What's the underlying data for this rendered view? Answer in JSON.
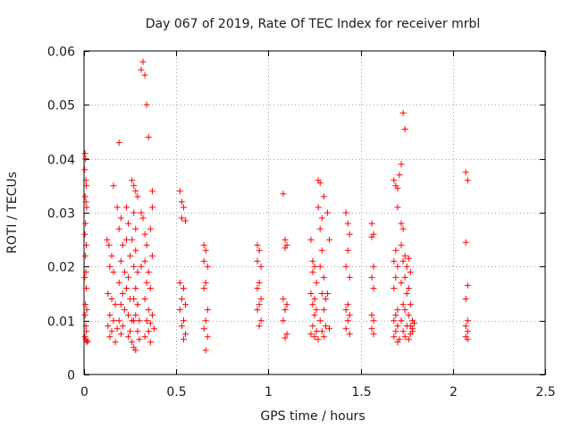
{
  "chart_data": {
    "type": "scatter",
    "title": "Day 067 of 2019, Rate Of TEC Index for receiver mrbl",
    "xlabel": "GPS time / hours",
    "ylabel": "ROTI / TECUs",
    "xlim": [
      0,
      2.5
    ],
    "ylim": [
      0,
      0.06
    ],
    "xticks": [
      0,
      0.5,
      1,
      1.5,
      2,
      2.5
    ],
    "xtick_labels": [
      "0",
      "0.5",
      "1",
      "1.5",
      "2",
      "2.5"
    ],
    "yticks": [
      0,
      0.01,
      0.02,
      0.03,
      0.04,
      0.05,
      0.06
    ],
    "ytick_labels": [
      "0",
      "0.01",
      "0.02",
      "0.03",
      "0.04",
      "0.05",
      "0.06"
    ],
    "grid": true,
    "marker": "+",
    "color": "#ff0000",
    "series": [
      {
        "name": "ROTI",
        "points": [
          [
            0.005,
            0.041
          ],
          [
            0.008,
            0.04
          ],
          [
            0.004,
            0.038
          ],
          [
            0.01,
            0.036
          ],
          [
            0.012,
            0.035
          ],
          [
            0.006,
            0.033
          ],
          [
            0.01,
            0.032
          ],
          [
            0.014,
            0.031
          ],
          [
            0.008,
            0.028
          ],
          [
            0.005,
            0.026
          ],
          [
            0.012,
            0.024
          ],
          [
            0.007,
            0.022
          ],
          [
            0.01,
            0.019
          ],
          [
            0.004,
            0.018
          ],
          [
            0.012,
            0.016
          ],
          [
            0.008,
            0.013
          ],
          [
            0.015,
            0.012
          ],
          [
            0.006,
            0.011
          ],
          [
            0.01,
            0.009
          ],
          [
            0.013,
            0.008
          ],
          [
            0.005,
            0.007
          ],
          [
            0.009,
            0.0065
          ],
          [
            0.014,
            0.006
          ],
          [
            0.02,
            0.0062
          ],
          [
            0.125,
            0.025
          ],
          [
            0.135,
            0.024
          ],
          [
            0.15,
            0.022
          ],
          [
            0.14,
            0.02
          ],
          [
            0.16,
            0.019
          ],
          [
            0.13,
            0.015
          ],
          [
            0.15,
            0.014
          ],
          [
            0.17,
            0.013
          ],
          [
            0.14,
            0.011
          ],
          [
            0.16,
            0.01
          ],
          [
            0.13,
            0.009
          ],
          [
            0.15,
            0.008
          ],
          [
            0.18,
            0.0085
          ],
          [
            0.14,
            0.007
          ],
          [
            0.17,
            0.006
          ],
          [
            0.16,
            0.035
          ],
          [
            0.19,
            0.043
          ],
          [
            0.18,
            0.031
          ],
          [
            0.2,
            0.029
          ],
          [
            0.19,
            0.027
          ],
          [
            0.21,
            0.024
          ],
          [
            0.2,
            0.021
          ],
          [
            0.22,
            0.019
          ],
          [
            0.19,
            0.017
          ],
          [
            0.21,
            0.015
          ],
          [
            0.2,
            0.013
          ],
          [
            0.22,
            0.012
          ],
          [
            0.19,
            0.01
          ],
          [
            0.21,
            0.009
          ],
          [
            0.2,
            0.0075
          ],
          [
            0.23,
            0.031
          ],
          [
            0.24,
            0.028
          ],
          [
            0.23,
            0.025
          ],
          [
            0.25,
            0.022
          ],
          [
            0.24,
            0.018
          ],
          [
            0.23,
            0.016
          ],
          [
            0.25,
            0.014
          ],
          [
            0.24,
            0.011
          ],
          [
            0.26,
            0.01
          ],
          [
            0.25,
            0.008
          ],
          [
            0.24,
            0.007
          ],
          [
            0.26,
            0.006
          ],
          [
            0.27,
            0.005
          ],
          [
            0.28,
            0.0045
          ],
          [
            0.27,
            0.01
          ],
          [
            0.26,
            0.036
          ],
          [
            0.27,
            0.035
          ],
          [
            0.28,
            0.034
          ],
          [
            0.29,
            0.033
          ],
          [
            0.27,
            0.03
          ],
          [
            0.28,
            0.027
          ],
          [
            0.26,
            0.025
          ],
          [
            0.28,
            0.023
          ],
          [
            0.27,
            0.02
          ],
          [
            0.29,
            0.019
          ],
          [
            0.28,
            0.016
          ],
          [
            0.27,
            0.014
          ],
          [
            0.29,
            0.013
          ],
          [
            0.28,
            0.011
          ],
          [
            0.3,
            0.01
          ],
          [
            0.29,
            0.008
          ],
          [
            0.3,
            0.0065
          ],
          [
            0.31,
            0.03
          ],
          [
            0.32,
            0.029
          ],
          [
            0.31,
            0.02
          ],
          [
            0.32,
            0.058
          ],
          [
            0.31,
            0.0565
          ],
          [
            0.33,
            0.0555
          ],
          [
            0.34,
            0.05
          ],
          [
            0.35,
            0.044
          ],
          [
            0.33,
            0.026
          ],
          [
            0.34,
            0.024
          ],
          [
            0.33,
            0.021
          ],
          [
            0.35,
            0.019
          ],
          [
            0.34,
            0.017
          ],
          [
            0.33,
            0.014
          ],
          [
            0.35,
            0.012
          ],
          [
            0.34,
            0.01
          ],
          [
            0.36,
            0.0095
          ],
          [
            0.35,
            0.008
          ],
          [
            0.33,
            0.007
          ],
          [
            0.36,
            0.006
          ],
          [
            0.37,
            0.034
          ],
          [
            0.37,
            0.031
          ],
          [
            0.36,
            0.027
          ],
          [
            0.37,
            0.022
          ],
          [
            0.36,
            0.016
          ],
          [
            0.37,
            0.011
          ],
          [
            0.38,
            0.0085
          ],
          [
            0.52,
            0.034
          ],
          [
            0.53,
            0.032
          ],
          [
            0.54,
            0.031
          ],
          [
            0.53,
            0.029
          ],
          [
            0.55,
            0.0285
          ],
          [
            0.52,
            0.017
          ],
          [
            0.54,
            0.016
          ],
          [
            0.53,
            0.014
          ],
          [
            0.55,
            0.013
          ],
          [
            0.52,
            0.012
          ],
          [
            0.54,
            0.01
          ],
          [
            0.53,
            0.009
          ],
          [
            0.55,
            0.0075
          ],
          [
            0.54,
            0.0065
          ],
          [
            0.65,
            0.024
          ],
          [
            0.66,
            0.023
          ],
          [
            0.65,
            0.021
          ],
          [
            0.67,
            0.02
          ],
          [
            0.66,
            0.017
          ],
          [
            0.65,
            0.016
          ],
          [
            0.67,
            0.012
          ],
          [
            0.66,
            0.01
          ],
          [
            0.65,
            0.0085
          ],
          [
            0.67,
            0.007
          ],
          [
            0.66,
            0.0045
          ],
          [
            0.94,
            0.024
          ],
          [
            0.95,
            0.023
          ],
          [
            0.94,
            0.021
          ],
          [
            0.96,
            0.02
          ],
          [
            0.95,
            0.017
          ],
          [
            0.94,
            0.016
          ],
          [
            0.96,
            0.014
          ],
          [
            0.95,
            0.013
          ],
          [
            0.94,
            0.012
          ],
          [
            0.96,
            0.01
          ],
          [
            0.95,
            0.009
          ],
          [
            1.08,
            0.0335
          ],
          [
            1.09,
            0.025
          ],
          [
            1.1,
            0.024
          ],
          [
            1.09,
            0.0235
          ],
          [
            1.08,
            0.014
          ],
          [
            1.1,
            0.013
          ],
          [
            1.09,
            0.012
          ],
          [
            1.08,
            0.01
          ],
          [
            1.1,
            0.0075
          ],
          [
            1.09,
            0.0068
          ],
          [
            1.23,
            0.025
          ],
          [
            1.24,
            0.021
          ],
          [
            1.25,
            0.02
          ],
          [
            1.24,
            0.019
          ],
          [
            1.26,
            0.017
          ],
          [
            1.23,
            0.015
          ],
          [
            1.25,
            0.014
          ],
          [
            1.24,
            0.013
          ],
          [
            1.26,
            0.012
          ],
          [
            1.25,
            0.011
          ],
          [
            1.24,
            0.009
          ],
          [
            1.26,
            0.008
          ],
          [
            1.23,
            0.0075
          ],
          [
            1.25,
            0.007
          ],
          [
            1.27,
            0.0065
          ],
          [
            1.27,
            0.036
          ],
          [
            1.28,
            0.0355
          ],
          [
            1.27,
            0.031
          ],
          [
            1.29,
            0.029
          ],
          [
            1.28,
            0.027
          ],
          [
            1.3,
            0.033
          ],
          [
            1.29,
            0.023
          ],
          [
            1.28,
            0.02
          ],
          [
            1.3,
            0.018
          ],
          [
            1.29,
            0.015
          ],
          [
            1.31,
            0.014
          ],
          [
            1.3,
            0.012
          ],
          [
            1.28,
            0.01
          ],
          [
            1.31,
            0.009
          ],
          [
            1.29,
            0.008
          ],
          [
            1.3,
            0.007
          ],
          [
            1.32,
            0.03
          ],
          [
            1.33,
            0.025
          ],
          [
            1.32,
            0.015
          ],
          [
            1.33,
            0.0085
          ],
          [
            1.42,
            0.03
          ],
          [
            1.43,
            0.028
          ],
          [
            1.44,
            0.026
          ],
          [
            1.43,
            0.023
          ],
          [
            1.42,
            0.02
          ],
          [
            1.44,
            0.018
          ],
          [
            1.43,
            0.013
          ],
          [
            1.42,
            0.012
          ],
          [
            1.44,
            0.011
          ],
          [
            1.43,
            0.01
          ],
          [
            1.42,
            0.0085
          ],
          [
            1.44,
            0.0075
          ],
          [
            1.56,
            0.028
          ],
          [
            1.57,
            0.026
          ],
          [
            1.56,
            0.0255
          ],
          [
            1.57,
            0.02
          ],
          [
            1.56,
            0.018
          ],
          [
            1.57,
            0.016
          ],
          [
            1.56,
            0.011
          ],
          [
            1.57,
            0.01
          ],
          [
            1.56,
            0.0085
          ],
          [
            1.57,
            0.0075
          ],
          [
            1.68,
            0.036
          ],
          [
            1.69,
            0.035
          ],
          [
            1.7,
            0.0345
          ],
          [
            1.71,
            0.037
          ],
          [
            1.72,
            0.039
          ],
          [
            1.7,
            0.031
          ],
          [
            1.69,
            0.023
          ],
          [
            1.68,
            0.021
          ],
          [
            1.7,
            0.02
          ],
          [
            1.69,
            0.018
          ],
          [
            1.68,
            0.016
          ],
          [
            1.7,
            0.012
          ],
          [
            1.69,
            0.011
          ],
          [
            1.68,
            0.01
          ],
          [
            1.7,
            0.009
          ],
          [
            1.69,
            0.008
          ],
          [
            1.68,
            0.007
          ],
          [
            1.7,
            0.006
          ],
          [
            1.71,
            0.0065
          ],
          [
            1.72,
            0.028
          ],
          [
            1.73,
            0.0485
          ],
          [
            1.74,
            0.0455
          ],
          [
            1.73,
            0.027
          ],
          [
            1.72,
            0.024
          ],
          [
            1.74,
            0.022
          ],
          [
            1.73,
            0.021
          ],
          [
            1.75,
            0.02
          ],
          [
            1.74,
            0.018
          ],
          [
            1.72,
            0.017
          ],
          [
            1.75,
            0.015
          ],
          [
            1.73,
            0.013
          ],
          [
            1.74,
            0.012
          ],
          [
            1.72,
            0.01
          ],
          [
            1.75,
            0.009
          ],
          [
            1.73,
            0.008
          ],
          [
            1.74,
            0.007
          ],
          [
            1.76,
            0.0065
          ],
          [
            1.76,
            0.0215
          ],
          [
            1.77,
            0.019
          ],
          [
            1.76,
            0.016
          ],
          [
            1.77,
            0.013
          ],
          [
            1.76,
            0.011
          ],
          [
            1.78,
            0.01
          ],
          [
            1.77,
            0.009
          ],
          [
            1.78,
            0.008
          ],
          [
            1.77,
            0.0075
          ],
          [
            1.79,
            0.0095
          ],
          [
            1.78,
            0.0085
          ],
          [
            2.07,
            0.0375
          ],
          [
            2.08,
            0.036
          ],
          [
            2.07,
            0.0245
          ],
          [
            2.08,
            0.0165
          ],
          [
            2.07,
            0.014
          ],
          [
            2.08,
            0.01
          ],
          [
            2.07,
            0.009
          ],
          [
            2.08,
            0.008
          ],
          [
            2.07,
            0.007
          ],
          [
            2.08,
            0.0065
          ]
        ]
      }
    ]
  }
}
